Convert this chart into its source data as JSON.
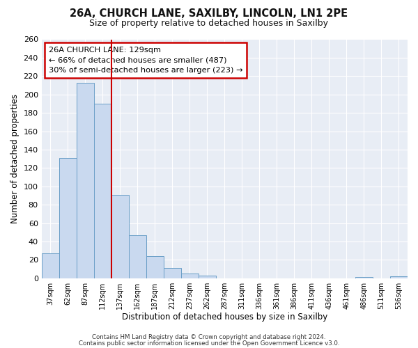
{
  "title": "26A, CHURCH LANE, SAXILBY, LINCOLN, LN1 2PE",
  "subtitle": "Size of property relative to detached houses in Saxilby",
  "xlabel": "Distribution of detached houses by size in Saxilby",
  "ylabel": "Number of detached properties",
  "bar_labels": [
    "37sqm",
    "62sqm",
    "87sqm",
    "112sqm",
    "137sqm",
    "162sqm",
    "187sqm",
    "212sqm",
    "237sqm",
    "262sqm",
    "287sqm",
    "311sqm",
    "336sqm",
    "361sqm",
    "386sqm",
    "411sqm",
    "436sqm",
    "461sqm",
    "486sqm",
    "511sqm",
    "536sqm"
  ],
  "bar_values": [
    27,
    131,
    213,
    190,
    91,
    47,
    24,
    11,
    5,
    3,
    0,
    0,
    0,
    0,
    0,
    0,
    0,
    0,
    1,
    0,
    2
  ],
  "bar_color": "#c9d9ef",
  "bar_edge_color": "#6a9ec7",
  "ylim": [
    0,
    260
  ],
  "yticks": [
    0,
    20,
    40,
    60,
    80,
    100,
    120,
    140,
    160,
    180,
    200,
    220,
    240,
    260
  ],
  "vline_x": 4,
  "vline_color": "#cc0000",
  "annotation_title": "26A CHURCH LANE: 129sqm",
  "annotation_line1": "← 66% of detached houses are smaller (487)",
  "annotation_line2": "30% of semi-detached houses are larger (223) →",
  "annotation_box_color": "#cc0000",
  "footer_line1": "Contains HM Land Registry data © Crown copyright and database right 2024.",
  "footer_line2": "Contains public sector information licensed under the Open Government Licence v3.0.",
  "fig_background": "#ffffff",
  "plot_background": "#e8edf5",
  "grid_color": "#ffffff"
}
